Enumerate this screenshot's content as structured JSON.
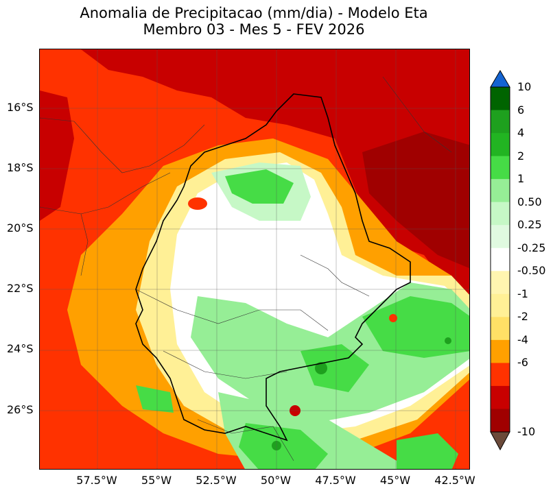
{
  "title": {
    "line1": "Anomalia de Precipitacao (mm/dia) - Modelo Eta",
    "line2": "Membro 03 - Mes 5 - FEV 2026"
  },
  "axes": {
    "y_ticks": [
      "16°S",
      "18°S",
      "20°S",
      "22°S",
      "24°S",
      "26°S"
    ],
    "x_ticks": [
      "57.5°W",
      "55°W",
      "52.5°W",
      "50°W",
      "47.5°W",
      "45°W",
      "42.5°W"
    ]
  },
  "colorbar": {
    "labels": [
      "10",
      "6",
      "4",
      "2",
      "1",
      "0.50",
      "0.25",
      "-0.25",
      "-0.50",
      "-1",
      "-2",
      "-4",
      "-6",
      "-10"
    ],
    "colors": [
      "#006400",
      "#1ea01e",
      "#22b422",
      "#46dc46",
      "#96ee96",
      "#c6f8c6",
      "#e0fae0",
      "#ffffff",
      "#fff5b0",
      "#fff096",
      "#ffe066",
      "#ffa000",
      "#ff3200",
      "#c80000",
      "#a00000"
    ],
    "over_color": "#1464d2",
    "under_color": "#6b4a3a"
  }
}
